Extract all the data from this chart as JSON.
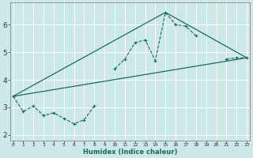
{
  "title": "",
  "xlabel": "Humidex (Indice chaleur)",
  "bg_color": "#cce8e8",
  "grid_color": "#ffffff",
  "line_color": "#1a6b5a",
  "x_data": [
    0,
    1,
    2,
    3,
    4,
    5,
    6,
    7,
    8,
    9,
    10,
    11,
    12,
    13,
    14,
    15,
    16,
    17,
    18,
    19,
    20,
    21,
    22,
    23
  ],
  "y_main": [
    3.4,
    2.85,
    3.05,
    2.7,
    2.8,
    2.6,
    2.4,
    2.55,
    3.05,
    null,
    4.4,
    4.75,
    5.35,
    5.45,
    4.7,
    6.45,
    6.0,
    5.95,
    5.6,
    null,
    null,
    4.75,
    4.8,
    4.8
  ],
  "line1": [
    [
      0,
      3.4
    ],
    [
      15,
      6.45
    ],
    [
      23,
      4.8
    ]
  ],
  "line2": [
    [
      0,
      3.4
    ],
    [
      23,
      4.8
    ]
  ],
  "ylim": [
    1.8,
    6.8
  ],
  "xlim": [
    -0.3,
    23.3
  ],
  "yticks": [
    2,
    3,
    4,
    5,
    6
  ],
  "xticks": [
    0,
    1,
    2,
    3,
    4,
    5,
    6,
    7,
    8,
    9,
    10,
    11,
    12,
    13,
    14,
    15,
    16,
    17,
    18,
    19,
    20,
    21,
    22,
    23
  ]
}
